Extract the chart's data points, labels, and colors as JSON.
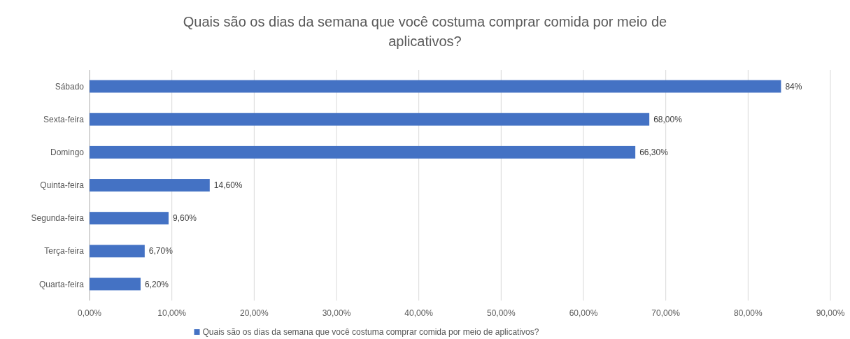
{
  "chart_data": {
    "type": "bar",
    "orientation": "horizontal",
    "title": "Quais são os dias da semana que você costuma comprar comida por meio de aplicativos?",
    "categories": [
      "Sábado",
      "Sexta-feira",
      "Domingo",
      "Quinta-feira",
      "Segunda-feira",
      "Terça-feira",
      "Quarta-feira"
    ],
    "series": [
      {
        "name": "Quais são os dias da semana que você costuma comprar comida por meio de aplicativos?",
        "color": "#4472c4",
        "values": [
          84,
          68,
          66.3,
          14.6,
          9.6,
          6.7,
          6.2
        ],
        "value_labels": [
          "84%",
          "68,00%",
          "66,30%",
          "14,60%",
          "9,60%",
          "6,70%",
          "6,20%"
        ]
      }
    ],
    "xlim": [
      0,
      90
    ],
    "xticks": [
      {
        "value": 0,
        "label": "0,00%"
      },
      {
        "value": 10,
        "label": "10,00%"
      },
      {
        "value": 20,
        "label": "20,00%"
      },
      {
        "value": 30,
        "label": "30,00%"
      },
      {
        "value": 40,
        "label": "40,00%"
      },
      {
        "value": 50,
        "label": "50,00%"
      },
      {
        "value": 60,
        "label": "60,00%"
      },
      {
        "value": 70,
        "label": "70,00%"
      },
      {
        "value": 80,
        "label": "80,00%"
      },
      {
        "value": 90,
        "label": "90,00%"
      }
    ],
    "grid": "x",
    "legend": "bottom"
  }
}
